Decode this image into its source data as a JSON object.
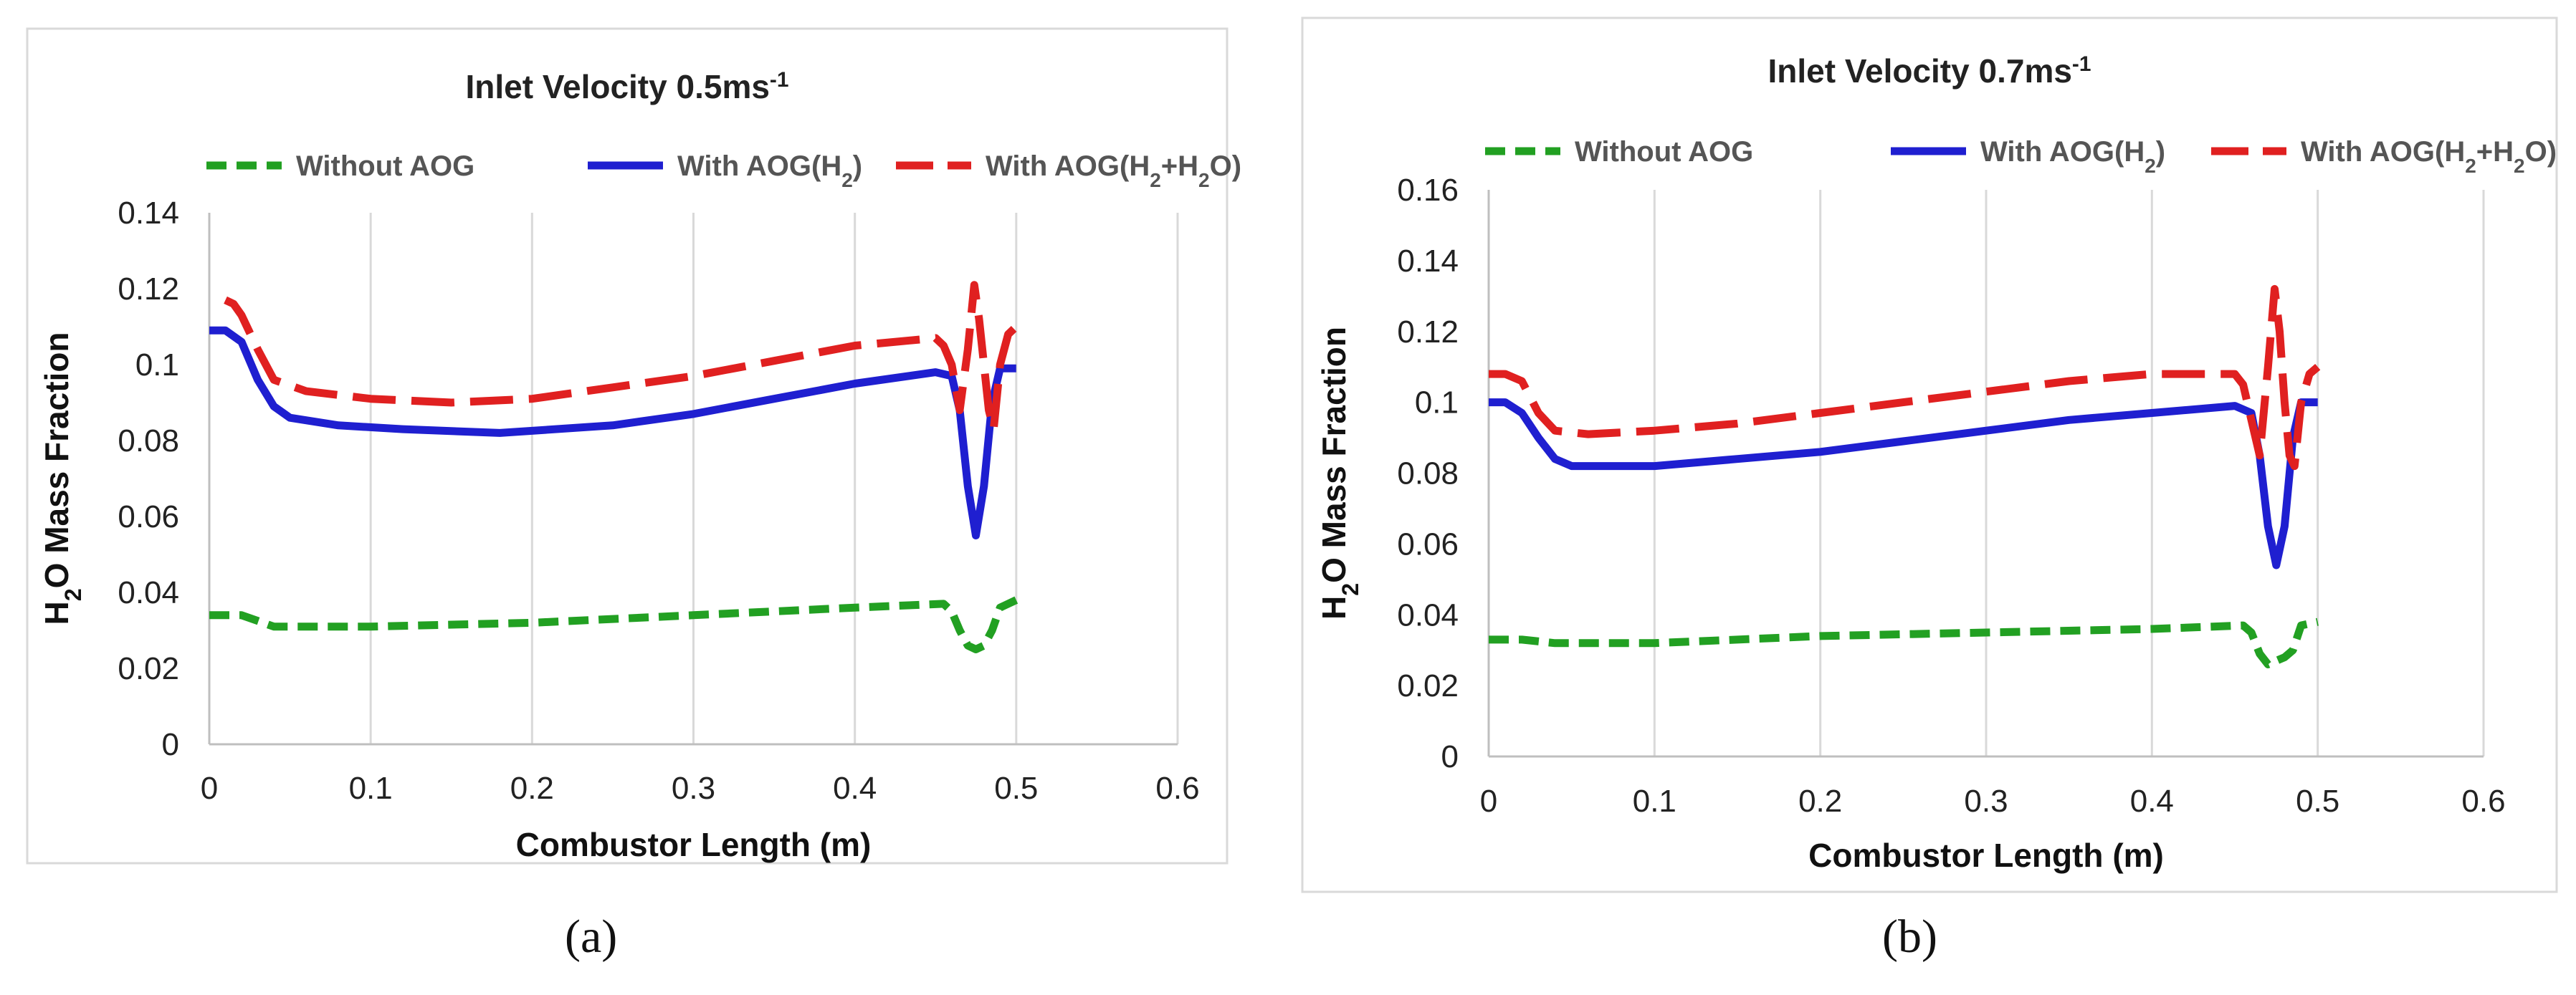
{
  "chart_data": [
    {
      "type": "line",
      "panel": "a",
      "caption": "(a)",
      "title": "Inlet Velocity 0.5ms-1",
      "title_main": "Inlet Velocity 0.5ms",
      "title_sup": "-1",
      "xlabel": "Combustor Length (m)",
      "ylabel": "H2O Mass Fraction",
      "xlim": [
        0,
        0.6
      ],
      "ylim": [
        0,
        0.14
      ],
      "xticks": [
        "0",
        "0.1",
        "0.2",
        "0.3",
        "0.4",
        "0.5",
        "0.6"
      ],
      "yticks": [
        "0",
        "0.02",
        "0.04",
        "0.06",
        "0.08",
        "0.1",
        "0.12",
        "0.14"
      ],
      "legend_position": "top",
      "series": [
        {
          "name": "Without AOG",
          "color": "#22a022",
          "style": "dashed",
          "x": [
            0,
            0.02,
            0.04,
            0.1,
            0.2,
            0.3,
            0.4,
            0.455,
            0.46,
            0.465,
            0.47,
            0.475,
            0.48,
            0.485,
            0.49,
            0.5
          ],
          "y": [
            0.034,
            0.034,
            0.031,
            0.031,
            0.032,
            0.034,
            0.036,
            0.037,
            0.035,
            0.03,
            0.026,
            0.025,
            0.026,
            0.03,
            0.036,
            0.038
          ]
        },
        {
          "name": "With AOG(H2)",
          "color": "#1f1fd0",
          "style": "solid",
          "x": [
            0,
            0.01,
            0.02,
            0.03,
            0.04,
            0.05,
            0.08,
            0.12,
            0.18,
            0.25,
            0.3,
            0.35,
            0.4,
            0.45,
            0.46,
            0.465,
            0.47,
            0.475,
            0.48,
            0.485,
            0.49,
            0.5
          ],
          "y": [
            0.109,
            0.109,
            0.106,
            0.096,
            0.089,
            0.086,
            0.084,
            0.083,
            0.082,
            0.084,
            0.087,
            0.091,
            0.095,
            0.098,
            0.097,
            0.088,
            0.068,
            0.055,
            0.068,
            0.09,
            0.099,
            0.099
          ]
        },
        {
          "name": "With AOG(H2+H2O)",
          "color": "#e02020",
          "style": "long-dash",
          "x": [
            0.01,
            0.015,
            0.02,
            0.03,
            0.04,
            0.06,
            0.1,
            0.15,
            0.2,
            0.25,
            0.3,
            0.35,
            0.4,
            0.45,
            0.455,
            0.46,
            0.465,
            0.47,
            0.474,
            0.477,
            0.48,
            0.483,
            0.486,
            0.49,
            0.495,
            0.5
          ],
          "y": [
            0.117,
            0.116,
            0.113,
            0.104,
            0.096,
            0.093,
            0.091,
            0.09,
            0.091,
            0.094,
            0.097,
            0.101,
            0.105,
            0.107,
            0.105,
            0.1,
            0.088,
            0.104,
            0.121,
            0.112,
            0.1,
            0.088,
            0.083,
            0.1,
            0.108,
            0.11
          ]
        }
      ]
    },
    {
      "type": "line",
      "panel": "b",
      "caption": "(b)",
      "title": "Inlet Velocity 0.7ms-1",
      "title_main": "Inlet Velocity 0.7ms",
      "title_sup": "-1",
      "xlabel": "Combustor Length (m)",
      "ylabel": "H2O Mass Fraction",
      "xlim": [
        0,
        0.6
      ],
      "ylim": [
        0,
        0.16
      ],
      "xticks": [
        "0",
        "0.1",
        "0.2",
        "0.3",
        "0.4",
        "0.5",
        "0.6"
      ],
      "yticks": [
        "0",
        "0.02",
        "0.04",
        "0.06",
        "0.08",
        "0.1",
        "0.12",
        "0.14",
        "0.16"
      ],
      "legend_position": "top",
      "series": [
        {
          "name": "Without AOG",
          "color": "#22a022",
          "style": "dashed",
          "x": [
            0,
            0.02,
            0.04,
            0.1,
            0.2,
            0.3,
            0.4,
            0.455,
            0.46,
            0.465,
            0.47,
            0.475,
            0.48,
            0.485,
            0.49,
            0.5
          ],
          "y": [
            0.033,
            0.033,
            0.032,
            0.032,
            0.034,
            0.035,
            0.036,
            0.037,
            0.035,
            0.029,
            0.026,
            0.027,
            0.028,
            0.03,
            0.037,
            0.038
          ]
        },
        {
          "name": "With AOG(H2)",
          "color": "#1f1fd0",
          "style": "solid",
          "x": [
            0,
            0.01,
            0.02,
            0.03,
            0.04,
            0.05,
            0.06,
            0.1,
            0.15,
            0.2,
            0.25,
            0.3,
            0.35,
            0.4,
            0.45,
            0.46,
            0.465,
            0.47,
            0.475,
            0.48,
            0.485,
            0.49,
            0.5
          ],
          "y": [
            0.1,
            0.1,
            0.097,
            0.09,
            0.084,
            0.082,
            0.082,
            0.082,
            0.084,
            0.086,
            0.089,
            0.092,
            0.095,
            0.097,
            0.099,
            0.097,
            0.085,
            0.065,
            0.054,
            0.065,
            0.09,
            0.1,
            0.1
          ]
        },
        {
          "name": "With AOG(H2+H2O)",
          "color": "#e02020",
          "style": "long-dash",
          "x": [
            0,
            0.01,
            0.02,
            0.03,
            0.04,
            0.06,
            0.1,
            0.15,
            0.2,
            0.25,
            0.3,
            0.35,
            0.4,
            0.45,
            0.455,
            0.46,
            0.465,
            0.47,
            0.474,
            0.477,
            0.48,
            0.483,
            0.486,
            0.49,
            0.495,
            0.5
          ],
          "y": [
            0.108,
            0.108,
            0.106,
            0.097,
            0.092,
            0.091,
            0.092,
            0.094,
            0.097,
            0.1,
            0.103,
            0.106,
            0.108,
            0.108,
            0.105,
            0.095,
            0.085,
            0.11,
            0.132,
            0.12,
            0.1,
            0.085,
            0.082,
            0.1,
            0.108,
            0.11
          ]
        }
      ]
    }
  ]
}
